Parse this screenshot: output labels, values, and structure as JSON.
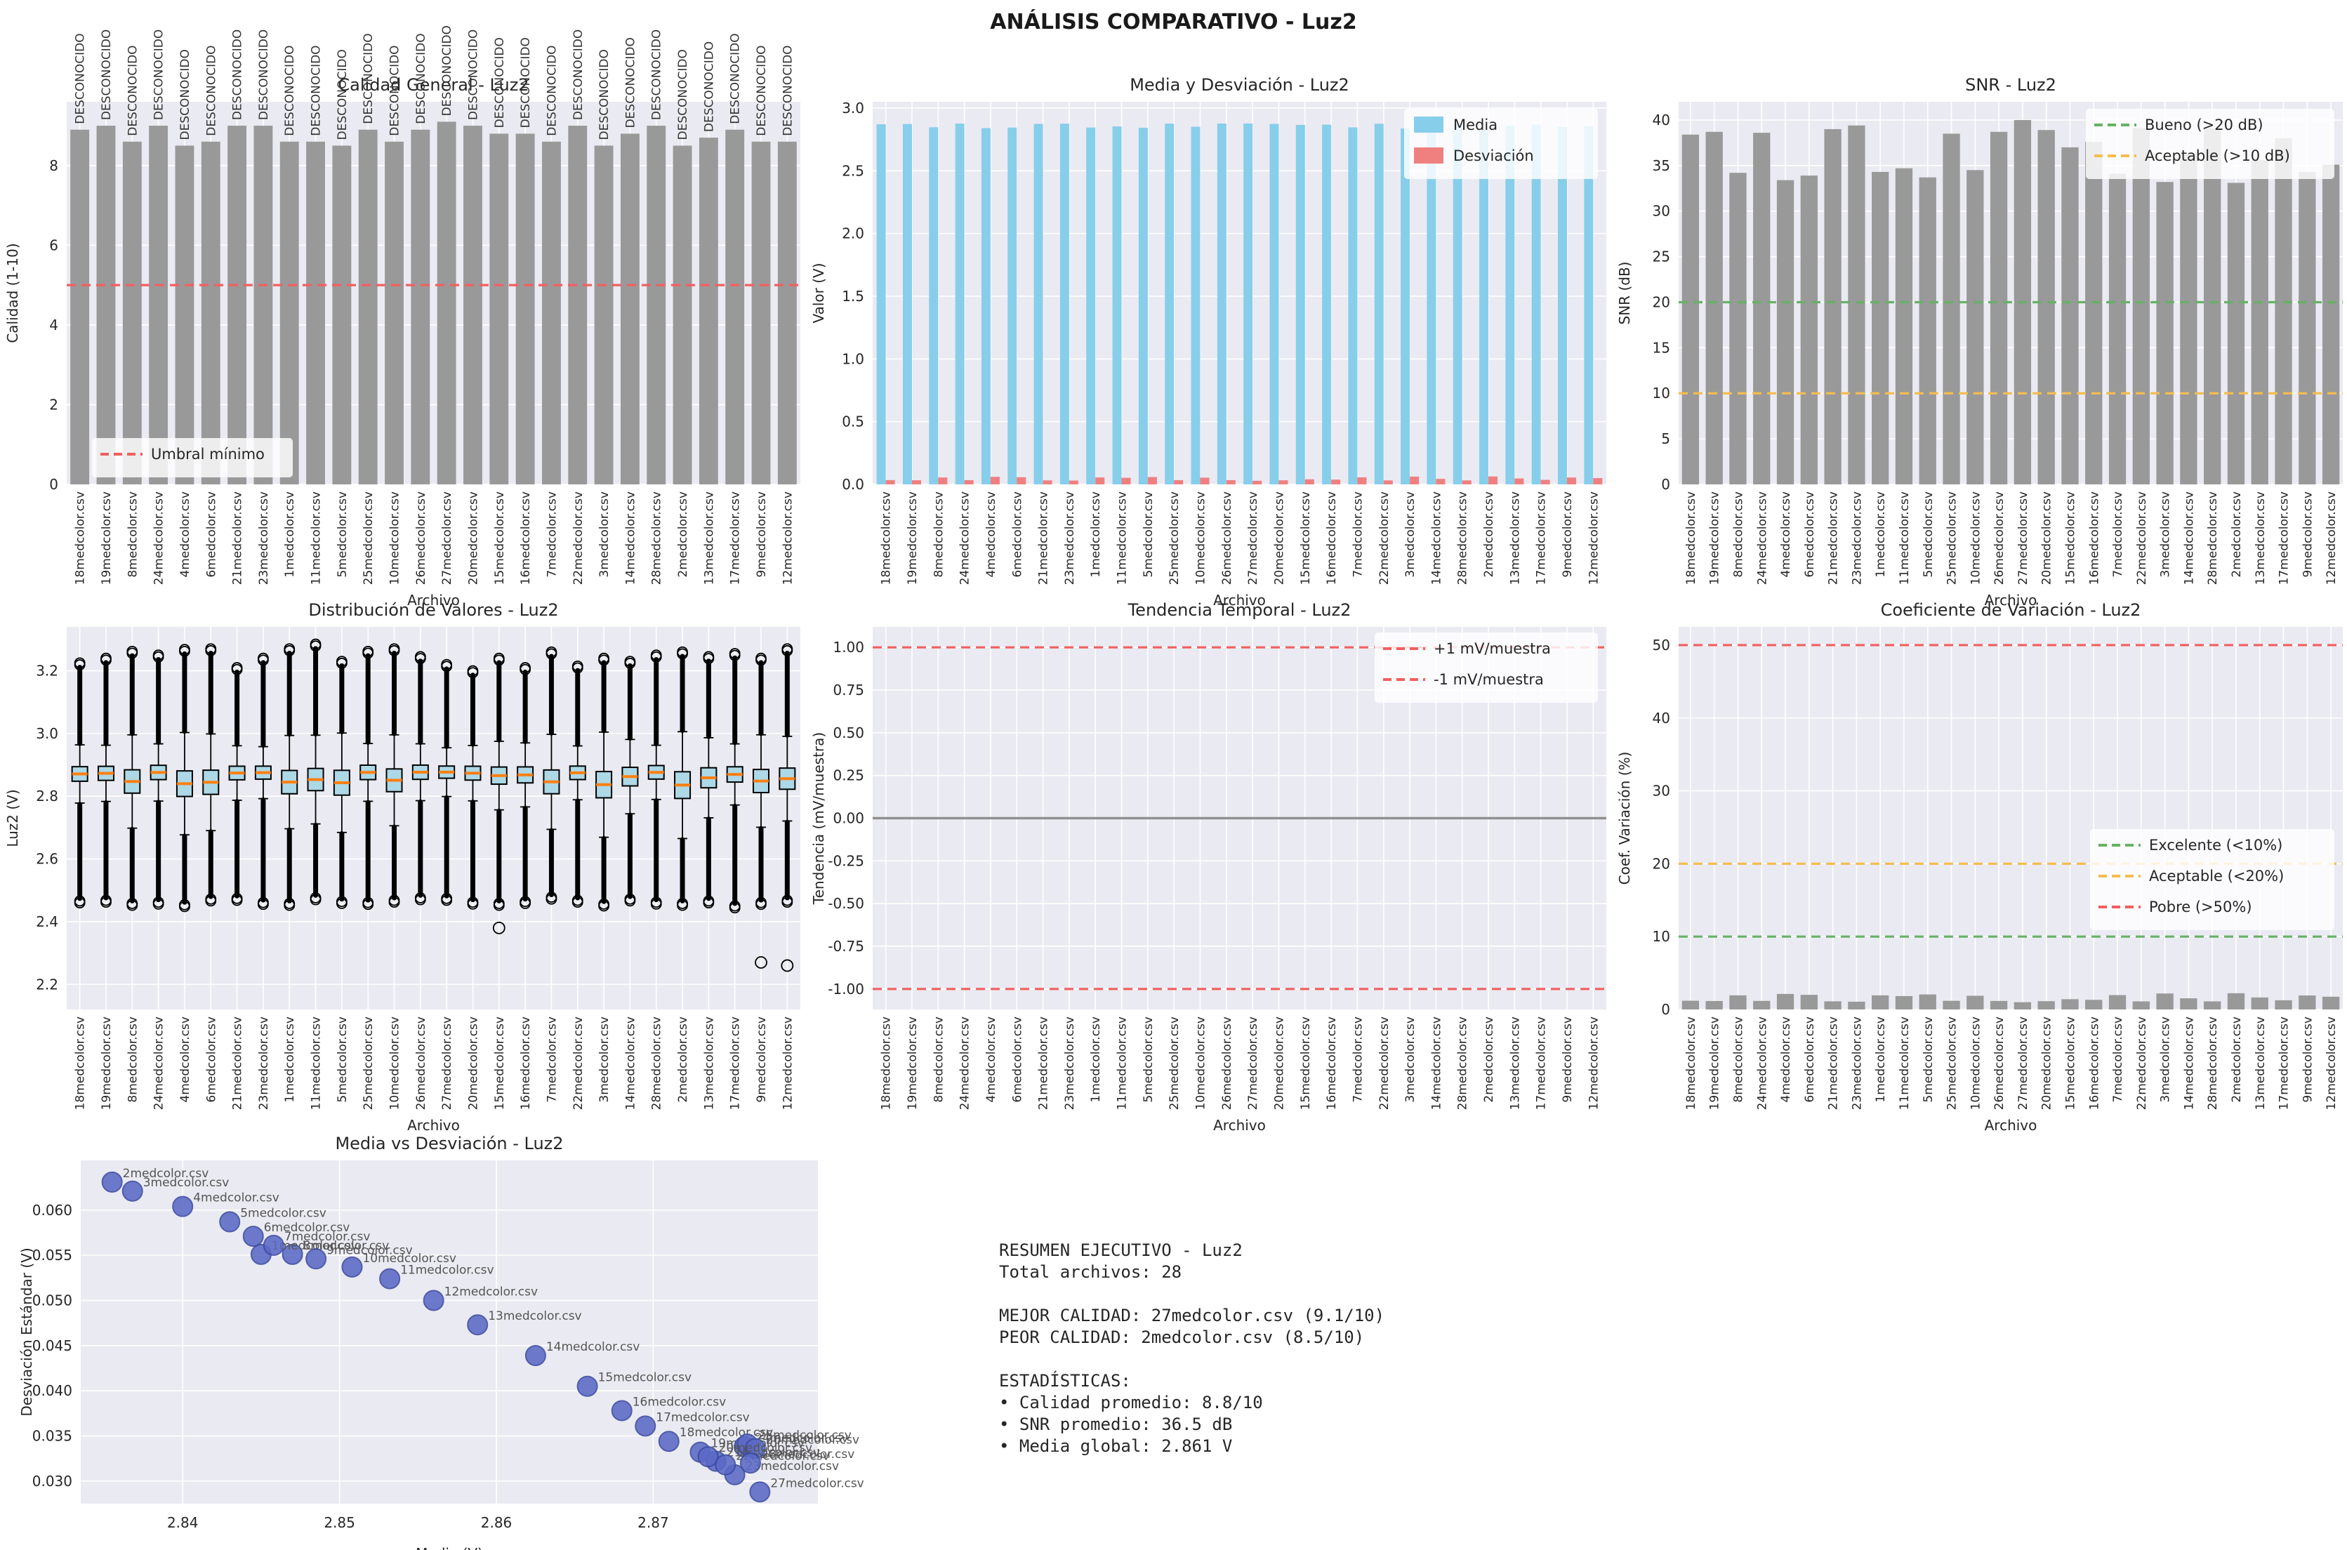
{
  "suptitle": "ANÁLISIS COMPARATIVO - Luz2",
  "signal_name": "Luz2",
  "xlabel_files": "Archivo",
  "files": [
    "18medcolor.csv",
    "19medcolor.csv",
    "8medcolor.csv",
    "24medcolor.csv",
    "4medcolor.csv",
    "6medcolor.csv",
    "21medcolor.csv",
    "23medcolor.csv",
    "1medcolor.csv",
    "11medcolor.csv",
    "5medcolor.csv",
    "25medcolor.csv",
    "10medcolor.csv",
    "26medcolor.csv",
    "27medcolor.csv",
    "20medcolor.csv",
    "15medcolor.csv",
    "16medcolor.csv",
    "7medcolor.csv",
    "22medcolor.csv",
    "3medcolor.csv",
    "14medcolor.csv",
    "28medcolor.csv",
    "2medcolor.csv",
    "13medcolor.csv",
    "17medcolor.csv",
    "9medcolor.csv",
    "12medcolor.csv"
  ],
  "colors": {
    "background": "#ffffff",
    "axes_bg": "#eaeaf2",
    "grid": "#ffffff",
    "bar_gray": "#999999",
    "media_blue": "#87ceeb",
    "desv_red": "#f08080",
    "box_fill": "#add8e6",
    "box_edge": "#000000",
    "median_orange": "#ff7f0e",
    "scatter_fill": "#5b6ac6",
    "scatter_edge": "#3a49a0",
    "thresh_red": "#f25f5f",
    "thresh_green": "#66b266",
    "thresh_orange": "#f5bd4f",
    "zero_gray": "#909090",
    "text": "#262626",
    "label_gray": "#555555"
  },
  "chart_data": [
    {
      "id": "calidad",
      "type": "bar",
      "title": "Calidad General - Luz2",
      "xlabel": "Archivo",
      "ylabel": "Calidad (1-10)",
      "ylim": [
        0,
        9.6
      ],
      "yticks": [
        0,
        2,
        4,
        6,
        8
      ],
      "ytick_labels": [
        "0",
        "2",
        "4",
        "6",
        "8"
      ],
      "bar_label": "DESCONOCIDO",
      "values": [
        8.9,
        9.0,
        8.6,
        9.0,
        8.5,
        8.6,
        9.0,
        9.0,
        8.6,
        8.6,
        8.5,
        8.9,
        8.6,
        8.9,
        9.1,
        9.0,
        8.8,
        8.8,
        8.6,
        9.0,
        8.5,
        8.8,
        9.0,
        8.5,
        8.7,
        8.9,
        8.6,
        8.6
      ],
      "thresholds": [
        {
          "label": "Umbral mínimo",
          "value": 5,
          "color": "thresh_red"
        }
      ],
      "legend_pos": "bottom-left"
    },
    {
      "id": "media_desv",
      "type": "bar",
      "title": "Media y Desviación - Luz2",
      "xlabel": "Archivo",
      "ylabel": "Valor (V)",
      "ylim": [
        0,
        3.05
      ],
      "yticks": [
        0.0,
        0.5,
        1.0,
        1.5,
        2.0,
        2.5,
        3.0
      ],
      "ytick_labels": [
        "0.0",
        "0.5",
        "1.0",
        "1.5",
        "2.0",
        "2.5",
        "3.0"
      ],
      "series": [
        {
          "name": "Media",
          "color": "media_blue",
          "values": [
            2.871,
            2.873,
            2.847,
            2.8758,
            2.84,
            2.8445,
            2.874,
            2.8752,
            2.845,
            2.8532,
            2.843,
            2.876,
            2.8508,
            2.8765,
            2.8768,
            2.8735,
            2.8658,
            2.868,
            2.8458,
            2.8746,
            2.8368,
            2.8625,
            2.8762,
            2.8355,
            2.8588,
            2.8695,
            2.8485,
            2.856
          ]
        },
        {
          "name": "Desviación",
          "color": "desv_red",
          "values": [
            0.0344,
            0.0332,
            0.0551,
            0.0338,
            0.0604,
            0.0571,
            0.0322,
            0.0307,
            0.0551,
            0.0524,
            0.0587,
            0.0341,
            0.0537,
            0.0336,
            0.0288,
            0.0327,
            0.0405,
            0.0378,
            0.0561,
            0.0318,
            0.0621,
            0.0439,
            0.032,
            0.0631,
            0.0473,
            0.0361,
            0.0546,
            0.05
          ]
        }
      ],
      "legend_pos": "top-right"
    },
    {
      "id": "snr",
      "type": "bar",
      "title": "SNR - Luz2",
      "xlabel": "Archivo",
      "ylabel": "SNR (dB)",
      "ylim": [
        0,
        42
      ],
      "yticks": [
        0,
        5,
        10,
        15,
        20,
        25,
        30,
        35,
        40
      ],
      "ytick_labels": [
        "0",
        "5",
        "10",
        "15",
        "20",
        "25",
        "30",
        "35",
        "40"
      ],
      "values": [
        38.4,
        38.7,
        34.2,
        38.6,
        33.4,
        33.9,
        39.0,
        39.4,
        34.3,
        34.7,
        33.7,
        38.5,
        34.5,
        38.7,
        40.0,
        38.9,
        37.0,
        37.6,
        34.1,
        39.1,
        33.2,
        36.3,
        39.1,
        33.1,
        35.6,
        38.0,
        34.3,
        35.1
      ],
      "thresholds": [
        {
          "label": "Bueno (>20 dB)",
          "value": 20,
          "color": "thresh_green"
        },
        {
          "label": "Aceptable (>10 dB)",
          "value": 10,
          "color": "thresh_orange"
        }
      ],
      "legend_pos": "top-right"
    },
    {
      "id": "dist",
      "type": "boxplot",
      "title": "Distribución de Valores - Luz2",
      "xlabel": "Archivo",
      "ylabel": "Luz2 (V)",
      "ylim": [
        2.12,
        3.34
      ],
      "yticks": [
        2.2,
        2.4,
        2.6,
        2.8,
        3.0,
        3.2
      ],
      "ytick_labels": [
        "2.2",
        "2.4",
        "2.6",
        "2.8",
        "3.0",
        "3.2"
      ],
      "medians": [
        2.871,
        2.873,
        2.847,
        2.8758,
        2.84,
        2.8445,
        2.874,
        2.8752,
        2.845,
        2.8532,
        2.843,
        2.876,
        2.8508,
        2.8765,
        2.8768,
        2.8735,
        2.8658,
        2.868,
        2.8458,
        2.8746,
        2.8368,
        2.8625,
        2.8762,
        2.8355,
        2.8588,
        2.8695,
        2.8485,
        2.856
      ],
      "stds": [
        0.0344,
        0.0332,
        0.0551,
        0.0338,
        0.0604,
        0.0571,
        0.0322,
        0.0307,
        0.0551,
        0.0524,
        0.0587,
        0.0341,
        0.0537,
        0.0336,
        0.0288,
        0.0327,
        0.0405,
        0.0378,
        0.0561,
        0.0318,
        0.0621,
        0.0439,
        0.032,
        0.0631,
        0.0473,
        0.0361,
        0.0546,
        0.05
      ],
      "vmin": [
        2.46,
        2.462,
        2.452,
        2.456,
        2.448,
        2.466,
        2.468,
        2.455,
        2.452,
        2.47,
        2.458,
        2.455,
        2.462,
        2.47,
        2.468,
        2.456,
        2.452,
        2.458,
        2.472,
        2.462,
        2.45,
        2.466,
        2.456,
        2.452,
        2.46,
        2.444,
        2.455,
        2.462
      ],
      "vmax": [
        3.225,
        3.24,
        3.262,
        3.25,
        3.268,
        3.27,
        3.21,
        3.24,
        3.27,
        3.285,
        3.23,
        3.262,
        3.27,
        3.245,
        3.22,
        3.2,
        3.24,
        3.21,
        3.26,
        3.215,
        3.24,
        3.23,
        3.25,
        3.26,
        3.245,
        3.255,
        3.24,
        3.27
      ],
      "lone_outliers": [
        {
          "file_index": 16,
          "value": 2.38
        },
        {
          "file_index": 26,
          "value": 2.27
        },
        {
          "file_index": 27,
          "value": 2.26
        }
      ]
    },
    {
      "id": "tendencia",
      "type": "bar",
      "title": "Tendencia Temporal - Luz2",
      "xlabel": "Archivo",
      "ylabel": "Tendencia (mV/muestra)",
      "ylim": [
        -1.12,
        1.12
      ],
      "yticks": [
        -1.0,
        -0.75,
        -0.5,
        -0.25,
        0.0,
        0.25,
        0.5,
        0.75,
        1.0
      ],
      "ytick_labels": [
        "-1.00",
        "-0.75",
        "-0.50",
        "-0.25",
        "0.00",
        "0.25",
        "0.50",
        "0.75",
        "1.00"
      ],
      "values": [
        0,
        0,
        0,
        0,
        0,
        0,
        0,
        0,
        0,
        0,
        0,
        0,
        0,
        0,
        0,
        0,
        0,
        0,
        0,
        0,
        0,
        0,
        0,
        0,
        0,
        0,
        0,
        0
      ],
      "zero_line": 0,
      "thresholds": [
        {
          "label": "+1 mV/muestra",
          "value": 1,
          "color": "thresh_red"
        },
        {
          "label": "-1 mV/muestra",
          "value": -1,
          "color": "thresh_red"
        }
      ],
      "legend_pos": "top-right"
    },
    {
      "id": "cv",
      "type": "bar",
      "title": "Coeficiente de Variación - Luz2",
      "xlabel": "Archivo",
      "ylabel": "Coef. Variación (%)",
      "ylim": [
        0,
        52.5
      ],
      "yticks": [
        0,
        10,
        20,
        30,
        40,
        50
      ],
      "ytick_labels": [
        "0",
        "10",
        "20",
        "30",
        "40",
        "50"
      ],
      "values": [
        1.2,
        1.16,
        1.94,
        1.18,
        2.13,
        2.01,
        1.12,
        1.07,
        1.94,
        1.84,
        2.06,
        1.19,
        1.88,
        1.17,
        1.0,
        1.14,
        1.41,
        1.32,
        1.97,
        1.11,
        2.19,
        1.53,
        1.11,
        2.23,
        1.65,
        1.26,
        1.92,
        1.75
      ],
      "thresholds": [
        {
          "label": "Excelente (<10%)",
          "value": 10,
          "color": "thresh_green"
        },
        {
          "label": "Aceptable (<20%)",
          "value": 20,
          "color": "thresh_orange"
        },
        {
          "label": "Pobre (>50%)",
          "value": 50,
          "color": "thresh_red"
        }
      ],
      "legend_pos": "mid-right"
    },
    {
      "id": "scatter",
      "type": "scatter",
      "title": "Media vs Desviación - Luz2",
      "xlabel": "Media (V)",
      "ylabel": "Desviación Estándar (V)",
      "xlim": [
        2.8335,
        2.8805
      ],
      "ylim": [
        0.0275,
        0.0655
      ],
      "xticks": [
        2.84,
        2.85,
        2.86,
        2.87
      ],
      "xtick_labels": [
        "2.84",
        "2.85",
        "2.86",
        "2.87"
      ],
      "yticks": [
        0.03,
        0.035,
        0.04,
        0.045,
        0.05,
        0.055,
        0.06
      ],
      "ytick_labels": [
        "0.030",
        "0.035",
        "0.040",
        "0.045",
        "0.050",
        "0.055",
        "0.060"
      ],
      "x": [
        2.871,
        2.873,
        2.847,
        2.8758,
        2.84,
        2.8445,
        2.874,
        2.8752,
        2.845,
        2.8532,
        2.843,
        2.876,
        2.8508,
        2.8765,
        2.8768,
        2.8735,
        2.8658,
        2.868,
        2.8458,
        2.8746,
        2.8368,
        2.8625,
        2.8762,
        2.8355,
        2.8588,
        2.8695,
        2.8485,
        2.856
      ],
      "y": [
        0.0344,
        0.0332,
        0.0551,
        0.0338,
        0.0604,
        0.0571,
        0.0322,
        0.0307,
        0.0551,
        0.0524,
        0.0587,
        0.0341,
        0.0537,
        0.0336,
        0.0288,
        0.0327,
        0.0405,
        0.0378,
        0.0561,
        0.0318,
        0.0621,
        0.0439,
        0.032,
        0.0631,
        0.0473,
        0.0361,
        0.0546,
        0.05
      ],
      "point_labels": [
        "18medcolor.csv",
        "19medcolor.csv",
        "8medcolor.csv",
        "24medcolor.csv",
        "4medcolor.csv",
        "6medcolor.csv",
        "21medcolor.csv",
        "23medcolor.csv",
        "1medcolor.csv",
        "11medcolor.csv",
        "5medcolor.csv",
        "25medcolor.csv",
        "10medcolor.csv",
        "26medcolor.csv",
        "27medcolor.csv",
        "20medcolor.csv",
        "15medcolor.csv",
        "16medcolor.csv",
        "7medcolor.csv",
        "22medcolor.csv",
        "3medcolor.csv",
        "14medcolor.csv",
        "28medcolor.csv",
        "2medcolor.csv",
        "13medcolor.csv",
        "17medcolor.csv",
        "9medcolor.csv",
        "12medcolor.csv"
      ]
    }
  ],
  "resumen": {
    "lines": [
      "RESUMEN EJECUTIVO - Luz2",
      "Total archivos: 28",
      "",
      "MEJOR CALIDAD: 27medcolor.csv (9.1/10)",
      "PEOR CALIDAD: 2medcolor.csv (8.5/10)",
      "",
      "ESTADÍSTICAS:",
      "• Calidad promedio: 8.8/10",
      "• SNR promedio: 36.5 dB",
      "• Media global: 2.861 V"
    ]
  }
}
